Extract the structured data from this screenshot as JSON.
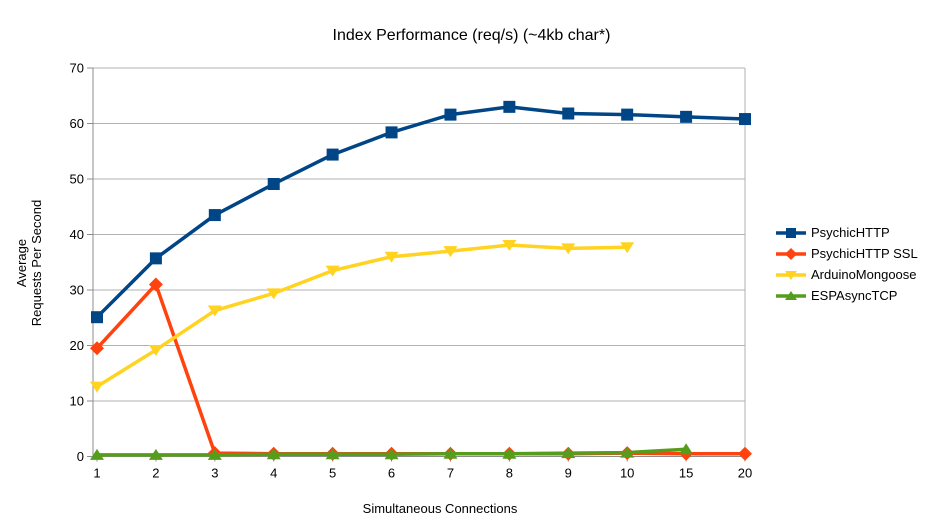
{
  "chart_data": {
    "type": "line",
    "title": "Index Performance (req/s) (~4kb char*)",
    "xlabel": "Simultaneous Connections",
    "ylabel": "Average\nRequests Per Second",
    "categories": [
      "1",
      "2",
      "3",
      "4",
      "5",
      "6",
      "7",
      "8",
      "9",
      "10",
      "15",
      "20"
    ],
    "y_ticks": [
      0,
      10,
      20,
      30,
      40,
      50,
      60,
      70
    ],
    "ylim": [
      0,
      70
    ],
    "grid": "horizontal",
    "legend_position": "right",
    "colors": {
      "gridline": "#b2b2b2",
      "axis": "#8c8c8c",
      "text": "#000000",
      "background": "#ffffff"
    },
    "series": [
      {
        "name": "PsychicHTTP",
        "color": "#004586",
        "marker": "square",
        "values": [
          25.1,
          35.7,
          43.5,
          49.1,
          54.4,
          58.4,
          61.6,
          63.0,
          61.8,
          61.6,
          61.2,
          60.8
        ]
      },
      {
        "name": "PsychicHTTP SSL",
        "color": "#FF420E",
        "marker": "diamond",
        "values": [
          19.5,
          31.0,
          0.6,
          0.5,
          0.5,
          0.5,
          0.5,
          0.5,
          0.5,
          0.6,
          0.5,
          0.5
        ]
      },
      {
        "name": "ArduinoMongoose",
        "color": "#FFD320",
        "marker": "triangle-down",
        "values": [
          12.6,
          19.2,
          26.3,
          29.4,
          33.5,
          36.0,
          37.0,
          38.1,
          37.5,
          37.7,
          null,
          null
        ]
      },
      {
        "name": "ESPAsyncTCP",
        "color": "#579D1C",
        "marker": "triangle-up",
        "values": [
          0.3,
          0.3,
          0.3,
          0.4,
          0.4,
          0.4,
          0.5,
          0.5,
          0.6,
          0.7,
          1.3,
          null
        ]
      }
    ]
  }
}
